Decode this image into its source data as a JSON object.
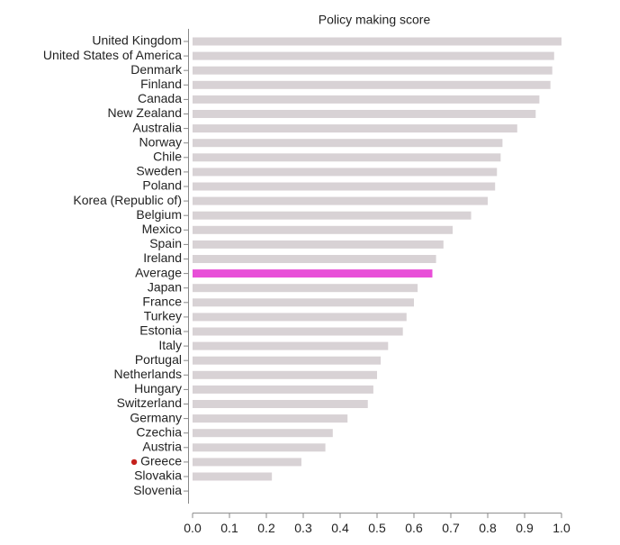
{
  "chart_data": {
    "type": "hbar",
    "title": "Policy making score",
    "categories": [
      "United Kingdom",
      "United States of America",
      "Denmark",
      "Finland",
      "Canada",
      "New Zealand",
      "Australia",
      "Norway",
      "Chile",
      "Sweden",
      "Poland",
      "Korea (Republic of)",
      "Belgium",
      "Mexico",
      "Spain",
      "Ireland",
      "Average",
      "Japan",
      "France",
      "Turkey",
      "Estonia",
      "Italy",
      "Portugal",
      "Netherlands",
      "Hungary",
      "Switzerland",
      "Germany",
      "Czechia",
      "Austria",
      "Greece",
      "Slovakia",
      "Slovenia"
    ],
    "values": [
      1.0,
      0.98,
      0.975,
      0.97,
      0.94,
      0.93,
      0.88,
      0.84,
      0.835,
      0.825,
      0.82,
      0.8,
      0.755,
      0.705,
      0.68,
      0.66,
      0.65,
      0.61,
      0.6,
      0.58,
      0.57,
      0.53,
      0.51,
      0.5,
      0.49,
      0.475,
      0.42,
      0.38,
      0.36,
      0.295,
      0.215,
      0
    ],
    "color": "#d8d2d5",
    "highlight": {
      "category": "Average",
      "color": "#e84fd8"
    },
    "marker": {
      "category": "Greece",
      "color": "#c4201c"
    },
    "xlim": [
      0,
      1
    ],
    "xticks": [
      {
        "value": 0,
        "label": "0.0"
      },
      0.1,
      0.2,
      0.3,
      0.4,
      0.5,
      0.6,
      0.7,
      0.8,
      0.9,
      {
        "value": 1,
        "label": "1.0"
      }
    ]
  }
}
